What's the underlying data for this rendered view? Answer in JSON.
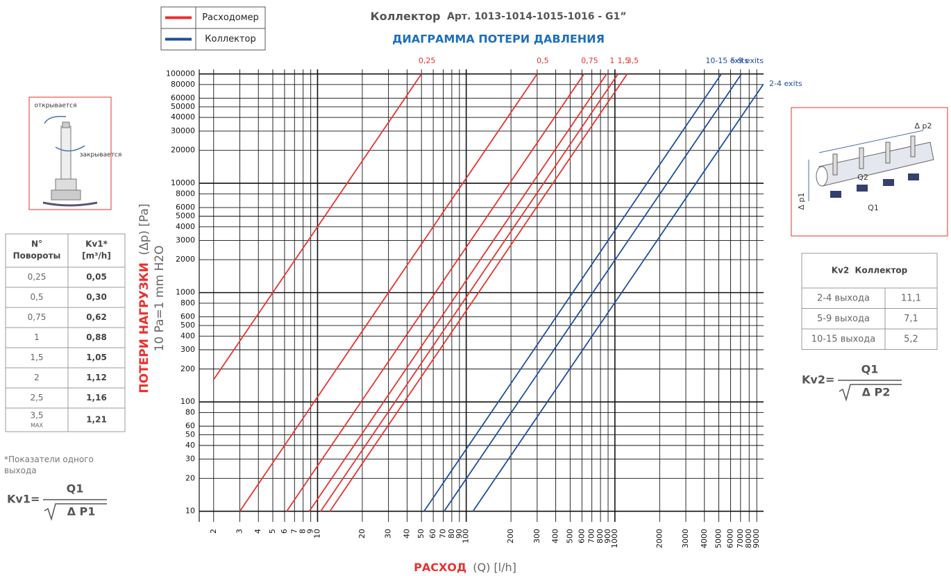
{
  "chart_data": {
    "type": "line",
    "title": "Коллектор",
    "title_detail": "Арт. 1013-1014-1015-1016 - G1”",
    "subtitle": "ДИАГРАММА ПОТЕРИ ДАВЛЕНИЯ",
    "y_label": "ПОТЕРИ НАГРУЗКИ",
    "y_label_unit": "(Δp) [Pa]",
    "y_label_note": "10 Pa=1 mm H2O",
    "x_label": "РАСХОД",
    "x_label_unit": "(Q) [l/h]",
    "x_log": true,
    "y_log": true,
    "grid": true,
    "legend_position": "top-left",
    "legend": [
      {
        "name": "Расходомер",
        "color": "#e8322f"
      },
      {
        "name": "Коллектор",
        "color": "#1d4f9c"
      }
    ],
    "xlim": [
      1.6,
      10000
    ],
    "ylim": [
      8,
      110000
    ],
    "xticks": [
      2,
      3,
      4,
      5,
      6,
      7,
      8,
      9,
      10,
      20,
      30,
      40,
      50,
      60,
      70,
      80,
      90,
      100,
      200,
      300,
      400,
      500,
      600,
      700,
      800,
      900,
      1000,
      2000,
      3000,
      4000,
      5000,
      6000,
      7000,
      8000,
      9000
    ],
    "yticks": [
      10,
      20,
      30,
      40,
      50,
      60,
      80,
      100,
      200,
      300,
      400,
      500,
      600,
      800,
      1000,
      2000,
      3000,
      4000,
      5000,
      6000,
      8000,
      10000,
      20000,
      30000,
      40000,
      50000,
      60000,
      80000,
      100000
    ],
    "series": [
      {
        "name": "0,25",
        "color": "#e8322f",
        "x": [
          2,
          50
        ],
        "values": [
          160,
          100000
        ]
      },
      {
        "name": "0,5",
        "color": "#e8322f",
        "x": [
          3,
          300
        ],
        "values": [
          10,
          100000
        ]
      },
      {
        "name": "0,75",
        "color": "#e8322f",
        "x": [
          6.2,
          620
        ],
        "values": [
          10,
          100000
        ]
      },
      {
        "name": "1",
        "color": "#e8322f",
        "x": [
          8.8,
          880
        ],
        "values": [
          10,
          100000
        ]
      },
      {
        "name": "1,5",
        "color": "#e8322f",
        "x": [
          10.5,
          1050
        ],
        "values": [
          10,
          100000
        ]
      },
      {
        "name": "3,5",
        "color": "#e8322f",
        "x": [
          12.1,
          1210
        ],
        "values": [
          10,
          100000
        ]
      },
      {
        "name": "10-15 exits",
        "color": "#1d4f9c",
        "x": [
          52,
          5200
        ],
        "values": [
          10,
          100000
        ]
      },
      {
        "name": "5-9 exits",
        "color": "#1d4f9c",
        "x": [
          71,
          7100
        ],
        "values": [
          10,
          100000
        ]
      },
      {
        "name": "2-4 exits",
        "color": "#1d4f9c",
        "x": [
          111,
          10000
        ],
        "values": [
          10,
          81000
        ]
      }
    ]
  },
  "valve_labels": [
    "открывается",
    "закрывается"
  ],
  "kv1_table": {
    "header": [
      [
        "N°",
        "Повороты"
      ],
      [
        "Kv1*",
        "[m³/h]"
      ]
    ],
    "rows": [
      [
        "0,25",
        "0,05"
      ],
      [
        "0,5",
        "0,30"
      ],
      [
        "0,75",
        "0,62"
      ],
      [
        "1",
        "0,88"
      ],
      [
        "1,5",
        "1,05"
      ],
      [
        "2",
        "1,12"
      ],
      [
        "2,5",
        "1,16"
      ],
      [
        "3,5",
        "1,21"
      ]
    ],
    "max_note": "MAX"
  },
  "footnote": "*Показатели одного выхода",
  "kv1_formula": {
    "lhs": "Kv1=",
    "num": "Q1",
    "den": "Δ P1"
  },
  "manifold_labels": [
    "Δ p2",
    "Q2",
    "Δ p1",
    "Q1"
  ],
  "kv2_table": {
    "title": "Kv2  Коллектор",
    "rows": [
      [
        "2-4 выхода",
        "11,1"
      ],
      [
        "5-9 выхода",
        "7,1"
      ],
      [
        "10-15 выхода",
        "5,2"
      ]
    ]
  },
  "kv2_formula": {
    "lhs": "Kv2=",
    "num": "Q1",
    "den": "Δ P2"
  }
}
